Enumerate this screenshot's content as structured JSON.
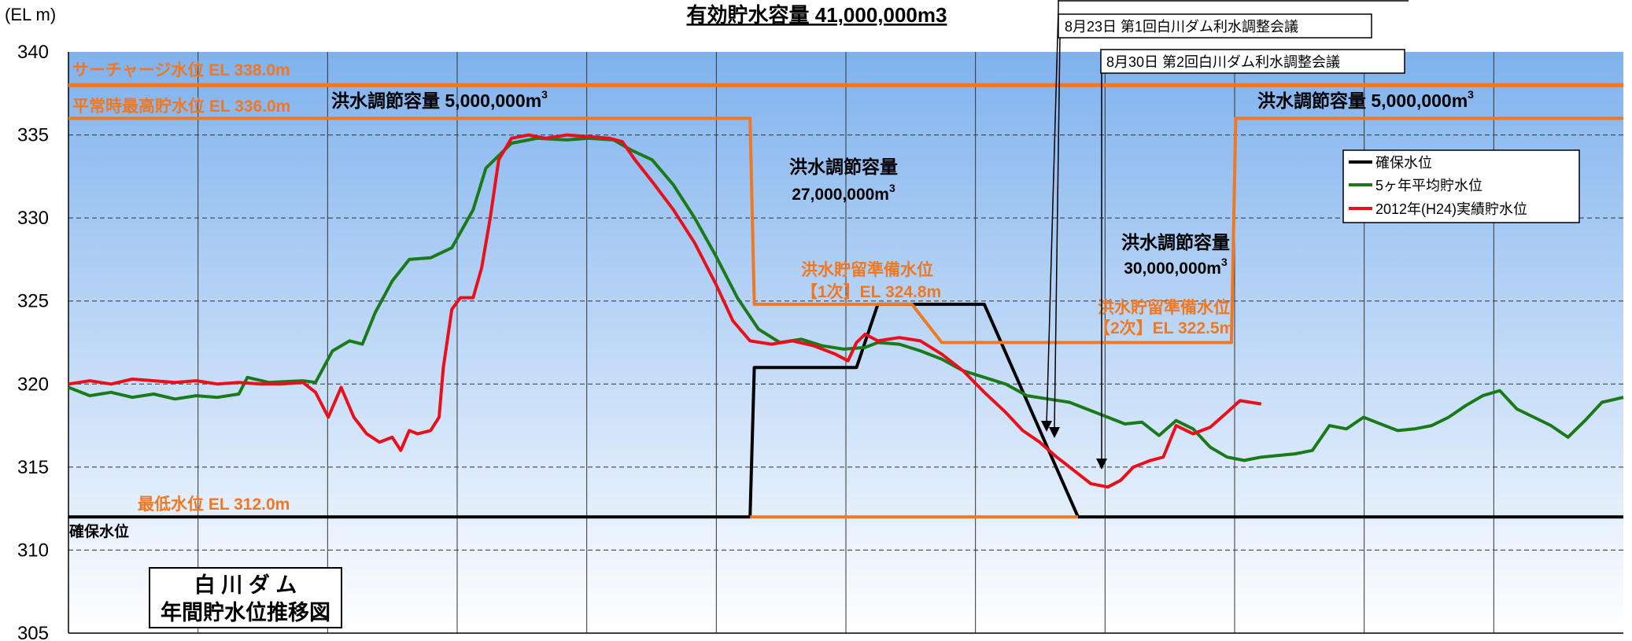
{
  "colors": {
    "black": "#000000",
    "green": "#1a7a1a",
    "red": "#e8101a",
    "orange": "#f07820",
    "bg_top": "#7fb2ee",
    "bg_bottom": "#ffffff"
  },
  "chart_data": {
    "type": "line",
    "title": "有効貯水容量  41,000,000m3",
    "unit_label": "(EL m)",
    "ylim": [
      305,
      340
    ],
    "y_ticks": [
      305,
      310,
      315,
      320,
      325,
      330,
      335,
      340
    ],
    "x_range": [
      0,
      365
    ],
    "grid": true,
    "legend_position": "top-right",
    "legend": {
      "items": [
        {
          "label": "確保水位",
          "color": "#000000"
        },
        {
          "label": "5ヶ年平均貯水位",
          "color": "#1a7a1a"
        },
        {
          "label": "2012年(H24)実績貯水位",
          "color": "#e8101a"
        }
      ]
    },
    "chart_box": {
      "line1": "白 川 ダ ム",
      "line2": "年間貯水位推移図"
    },
    "reference_levels": [
      {
        "label": "サーチャージ水位  EL 338.0m",
        "value": 338.0
      },
      {
        "label": "平常時最高貯水位  EL 336.0m",
        "value": 336.0
      },
      {
        "label": "最低水位  EL 312.0m",
        "value": 312.0
      }
    ],
    "annotations": {
      "flood_cap_1": {
        "text": "洪水調節容量 5,000,000m",
        "sup": "3"
      },
      "flood_cap_2": {
        "line1": "洪水調節容量",
        "line2": "27,000,000m",
        "sup": "3"
      },
      "flood_cap_3": {
        "line1": "洪水調節容量",
        "line2": "30,000,000m",
        "sup": "3"
      },
      "flood_cap_4": {
        "text": "洪水調節容量 5,000,000m",
        "sup": "3"
      },
      "prep_1": {
        "line1": "洪水貯留準備水位",
        "line2": "【1次】EL  324.8m"
      },
      "prep_2": {
        "line1": "洪水貯留準備水位",
        "line2": "【2次】EL   322.5m"
      },
      "secured_label": "確保水位",
      "meeting_1": "8月23日   第1回白川ダム利水調整会議",
      "meeting_2": "8月30日   第2回白川ダム利水調整会議"
    },
    "series": [
      {
        "name": "確保水位",
        "color": "#000000",
        "points": [
          [
            0,
            312
          ],
          [
            160,
            312
          ],
          [
            161,
            321
          ],
          [
            185,
            321
          ],
          [
            190,
            324.8
          ],
          [
            215,
            324.8
          ],
          [
            237,
            312
          ],
          [
            365,
            312
          ]
        ]
      },
      {
        "name": "5ヶ年平均貯水位",
        "color": "#1a7a1a",
        "points": [
          [
            0,
            319.8
          ],
          [
            5,
            319.3
          ],
          [
            10,
            319.5
          ],
          [
            15,
            319.2
          ],
          [
            20,
            319.4
          ],
          [
            25,
            319.1
          ],
          [
            30,
            319.3
          ],
          [
            35,
            319.2
          ],
          [
            40,
            319.4
          ],
          [
            42,
            320.4
          ],
          [
            47,
            320.1
          ],
          [
            55,
            320.2
          ],
          [
            58,
            320.1
          ],
          [
            62,
            322.0
          ],
          [
            66,
            322.6
          ],
          [
            69,
            322.4
          ],
          [
            72,
            324.3
          ],
          [
            76,
            326.2
          ],
          [
            80,
            327.5
          ],
          [
            85,
            327.6
          ],
          [
            90,
            328.2
          ],
          [
            95,
            330.5
          ],
          [
            98,
            333.0
          ],
          [
            104,
            334.5
          ],
          [
            110,
            334.8
          ],
          [
            117,
            334.7
          ],
          [
            122,
            334.8
          ],
          [
            128,
            334.7
          ],
          [
            132,
            334.1
          ],
          [
            137,
            333.5
          ],
          [
            142,
            332.0
          ],
          [
            147,
            330.0
          ],
          [
            152,
            327.7
          ],
          [
            157,
            325.2
          ],
          [
            162,
            323.3
          ],
          [
            167,
            322.5
          ],
          [
            172,
            322.7
          ],
          [
            177,
            322.3
          ],
          [
            182,
            322.1
          ],
          [
            187,
            322.2
          ],
          [
            190,
            322.5
          ],
          [
            195,
            322.4
          ],
          [
            200,
            322.0
          ],
          [
            205,
            321.5
          ],
          [
            210,
            320.8
          ],
          [
            215,
            320.4
          ],
          [
            220,
            320.0
          ],
          [
            225,
            319.3
          ],
          [
            230,
            319.1
          ],
          [
            235,
            318.9
          ],
          [
            240,
            318.4
          ],
          [
            244,
            318.0
          ],
          [
            248,
            317.6
          ],
          [
            252,
            317.7
          ],
          [
            256,
            316.9
          ],
          [
            260,
            317.8
          ],
          [
            264,
            317.3
          ],
          [
            268,
            316.2
          ],
          [
            272,
            315.6
          ],
          [
            276,
            315.4
          ],
          [
            280,
            315.6
          ],
          [
            284,
            315.7
          ],
          [
            288,
            315.8
          ],
          [
            292,
            316.0
          ],
          [
            296,
            317.5
          ],
          [
            300,
            317.3
          ],
          [
            304,
            318.0
          ],
          [
            308,
            317.6
          ],
          [
            312,
            317.2
          ],
          [
            316,
            317.3
          ],
          [
            320,
            317.5
          ],
          [
            324,
            318.0
          ],
          [
            328,
            318.7
          ],
          [
            332,
            319.3
          ],
          [
            336,
            319.6
          ],
          [
            340,
            318.5
          ],
          [
            344,
            318.0
          ],
          [
            348,
            317.5
          ],
          [
            352,
            316.8
          ],
          [
            356,
            317.8
          ],
          [
            360,
            318.9
          ],
          [
            365,
            319.2
          ]
        ]
      },
      {
        "name": "2012年(H24)実績貯水位",
        "color": "#e8101a",
        "points": [
          [
            0,
            320.0
          ],
          [
            5,
            320.2
          ],
          [
            10,
            320.0
          ],
          [
            15,
            320.3
          ],
          [
            20,
            320.2
          ],
          [
            25,
            320.1
          ],
          [
            30,
            320.2
          ],
          [
            35,
            320.0
          ],
          [
            40,
            320.1
          ],
          [
            45,
            320.0
          ],
          [
            50,
            320.0
          ],
          [
            55,
            320.1
          ],
          [
            58,
            319.5
          ],
          [
            61,
            318.0
          ],
          [
            64,
            319.8
          ],
          [
            67,
            318.0
          ],
          [
            70,
            317.0
          ],
          [
            73,
            316.5
          ],
          [
            76,
            316.8
          ],
          [
            78,
            316.0
          ],
          [
            80,
            317.2
          ],
          [
            82,
            317.0
          ],
          [
            85,
            317.2
          ],
          [
            87,
            318.0
          ],
          [
            88,
            321.0
          ],
          [
            90,
            324.5
          ],
          [
            92,
            325.2
          ],
          [
            95,
            325.2
          ],
          [
            97,
            327.0
          ],
          [
            99,
            330.0
          ],
          [
            101,
            333.5
          ],
          [
            104,
            334.8
          ],
          [
            108,
            335.0
          ],
          [
            112,
            334.8
          ],
          [
            117,
            335.0
          ],
          [
            122,
            334.9
          ],
          [
            127,
            334.8
          ],
          [
            130,
            334.6
          ],
          [
            133,
            333.5
          ],
          [
            137,
            332.2
          ],
          [
            142,
            330.5
          ],
          [
            147,
            328.5
          ],
          [
            152,
            326.0
          ],
          [
            156,
            323.8
          ],
          [
            160,
            322.6
          ],
          [
            165,
            322.4
          ],
          [
            170,
            322.6
          ],
          [
            175,
            322.3
          ],
          [
            180,
            321.8
          ],
          [
            183,
            321.4
          ],
          [
            185,
            322.5
          ],
          [
            187,
            323.0
          ],
          [
            190,
            322.6
          ],
          [
            195,
            322.8
          ],
          [
            200,
            322.6
          ],
          [
            205,
            321.8
          ],
          [
            210,
            320.8
          ],
          [
            215,
            319.5
          ],
          [
            220,
            318.3
          ],
          [
            224,
            317.2
          ],
          [
            228,
            316.5
          ],
          [
            232,
            315.6
          ],
          [
            236,
            314.8
          ],
          [
            240,
            314.0
          ],
          [
            244,
            313.8
          ],
          [
            247,
            314.2
          ],
          [
            250,
            315.0
          ],
          [
            254,
            315.4
          ],
          [
            257,
            315.6
          ],
          [
            260,
            317.5
          ],
          [
            264,
            317.0
          ],
          [
            268,
            317.4
          ],
          [
            272,
            318.3
          ],
          [
            275,
            319.0
          ],
          [
            280,
            318.8
          ]
        ]
      },
      {
        "name": "洪水貯留準備水位",
        "color": "#f07820",
        "points": [
          [
            0,
            336
          ],
          [
            160,
            336
          ],
          [
            161,
            324.8
          ],
          [
            198,
            324.8
          ],
          [
            205,
            322.5
          ],
          [
            273,
            322.5
          ],
          [
            274,
            336
          ],
          [
            365,
            336
          ]
        ]
      },
      {
        "name": "最低水位",
        "color": "#f07820",
        "points": [
          [
            160,
            312
          ],
          [
            237,
            312
          ]
        ]
      }
    ]
  }
}
